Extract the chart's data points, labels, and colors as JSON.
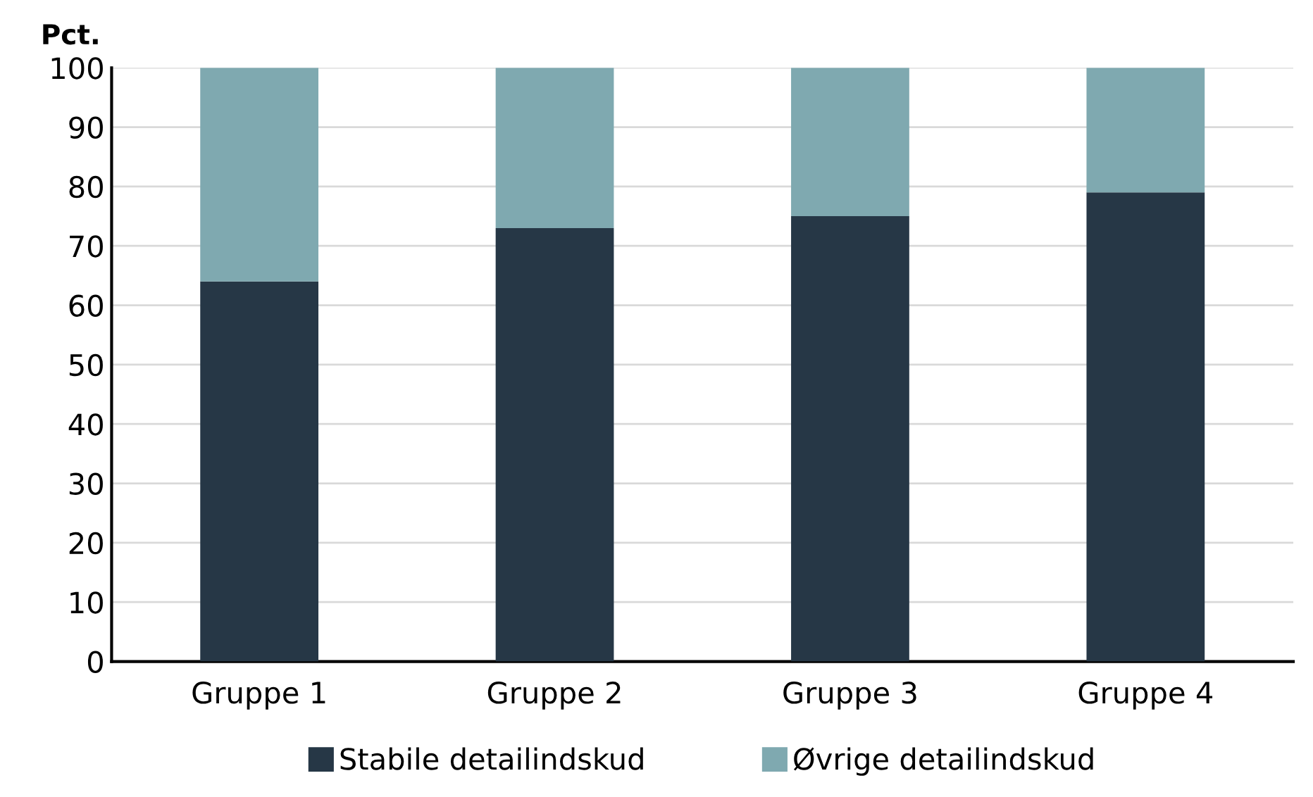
{
  "chart_data": {
    "type": "bar",
    "stacked": true,
    "ylabel": "Pct.",
    "categories": [
      "Gruppe 1",
      "Gruppe 2",
      "Gruppe 3",
      "Gruppe 4"
    ],
    "series": [
      {
        "name": "Stabile detailindskud",
        "color": "#263746",
        "values": [
          64,
          73,
          75,
          79
        ]
      },
      {
        "name": "Øvrige detailindskud",
        "color": "#7fa9b0",
        "values": [
          36,
          27,
          25,
          21
        ]
      }
    ],
    "ylim": [
      0,
      100
    ],
    "yticks": [
      0,
      10,
      20,
      30,
      40,
      50,
      60,
      70,
      80,
      90,
      100
    ],
    "grid": "y",
    "legend": "bottom"
  }
}
